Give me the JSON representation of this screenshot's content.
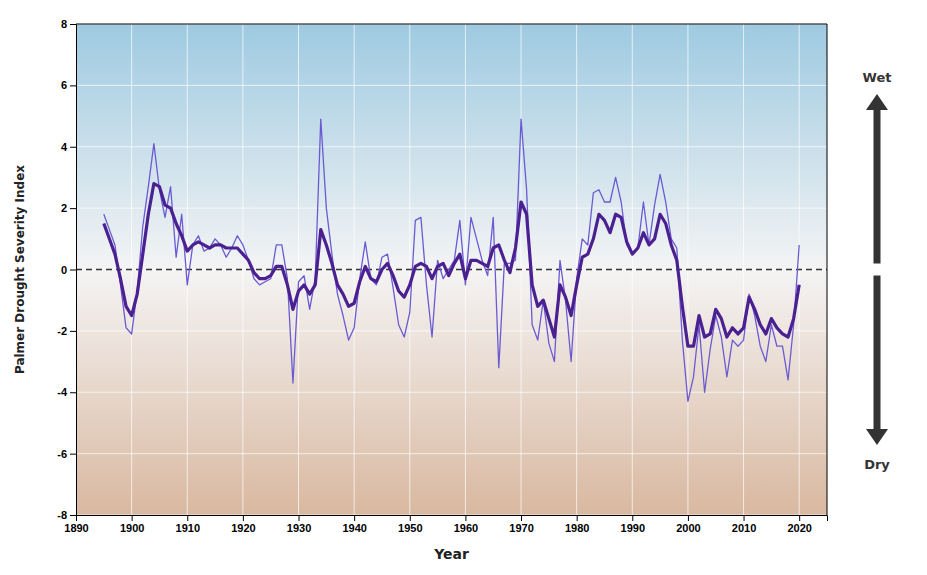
{
  "chart_data": {
    "type": "line",
    "xlabel": "Year",
    "ylabel": "Palmer Drought Severity Index",
    "annotations": [
      "Wet",
      "Dry"
    ],
    "x": [
      1895,
      1896,
      1897,
      1898,
      1899,
      1900,
      1901,
      1902,
      1903,
      1904,
      1905,
      1906,
      1907,
      1908,
      1909,
      1910,
      1911,
      1912,
      1913,
      1914,
      1915,
      1916,
      1917,
      1918,
      1919,
      1920,
      1921,
      1922,
      1923,
      1924,
      1925,
      1926,
      1927,
      1928,
      1929,
      1930,
      1931,
      1932,
      1933,
      1934,
      1935,
      1936,
      1937,
      1938,
      1939,
      1940,
      1941,
      1942,
      1943,
      1944,
      1945,
      1946,
      1947,
      1948,
      1949,
      1950,
      1951,
      1952,
      1953,
      1954,
      1955,
      1956,
      1957,
      1958,
      1959,
      1960,
      1961,
      1962,
      1963,
      1964,
      1965,
      1966,
      1967,
      1968,
      1969,
      1970,
      1971,
      1972,
      1973,
      1974,
      1975,
      1976,
      1977,
      1978,
      1979,
      1980,
      1981,
      1982,
      1983,
      1984,
      1985,
      1986,
      1987,
      1988,
      1989,
      1990,
      1991,
      1992,
      1993,
      1994,
      1995,
      1996,
      1997,
      1998,
      1999,
      2000,
      2001,
      2002,
      2003,
      2004,
      2005,
      2006,
      2007,
      2008,
      2009,
      2010,
      2011,
      2012,
      2013,
      2014,
      2015,
      2016,
      2017,
      2018,
      2019,
      2020
    ],
    "series": [
      {
        "color": "#6B5BD2",
        "values": [
          1.8,
          1.3,
          0.8,
          -0.5,
          -1.9,
          -2.1,
          -0.7,
          1.4,
          2.7,
          4.1,
          2.6,
          1.7,
          2.7,
          0.4,
          1.8,
          -0.5,
          0.8,
          1.1,
          0.6,
          0.7,
          1.0,
          0.8,
          0.4,
          0.7,
          1.1,
          0.8,
          0.3,
          -0.3,
          -0.5,
          -0.4,
          -0.3,
          0.8,
          0.8,
          -0.3,
          -3.7,
          -0.4,
          -0.2,
          -1.3,
          -0.3,
          4.9,
          2.0,
          0.5,
          -0.8,
          -1.5,
          -2.3,
          -1.9,
          -0.3,
          0.9,
          -0.3,
          -0.5,
          0.4,
          0.5,
          -0.6,
          -1.8,
          -2.2,
          -1.4,
          1.6,
          1.7,
          -0.5,
          -2.2,
          0.3,
          -0.3,
          0.0,
          0.3,
          1.6,
          -0.5,
          1.7,
          1.0,
          0.3,
          -0.2,
          1.7,
          -3.2,
          0.2,
          0.2,
          0.3,
          4.9,
          2.6,
          -1.8,
          -2.3,
          -1.0,
          -2.4,
          -3.0,
          0.3,
          -1.0,
          -3.0,
          -0.3,
          1.0,
          0.8,
          2.5,
          2.6,
          2.2,
          2.2,
          3.0,
          2.2,
          0.8,
          0.5,
          0.7,
          2.2,
          0.8,
          2.1,
          3.1,
          2.2,
          1.0,
          0.7,
          -2.3,
          -4.3,
          -3.5,
          -1.8,
          -4.0,
          -2.6,
          -1.5,
          -2.2,
          -3.5,
          -2.3,
          -2.5,
          -2.3,
          -0.8,
          -1.5,
          -2.5,
          -3.0,
          -1.8,
          -2.5,
          -2.5,
          -3.6,
          -1.8,
          0.8
        ]
      },
      {
        "color": "#4B2090",
        "values": [
          1.5,
          1.0,
          0.5,
          -0.3,
          -1.2,
          -1.5,
          -0.8,
          0.5,
          1.8,
          2.8,
          2.7,
          2.1,
          2.0,
          1.5,
          1.1,
          0.6,
          0.8,
          0.9,
          0.8,
          0.7,
          0.8,
          0.8,
          0.7,
          0.7,
          0.7,
          0.5,
          0.3,
          -0.1,
          -0.3,
          -0.3,
          -0.2,
          0.1,
          0.1,
          -0.5,
          -1.3,
          -0.7,
          -0.5,
          -0.8,
          -0.5,
          1.3,
          0.8,
          0.2,
          -0.5,
          -0.8,
          -1.2,
          -1.1,
          -0.4,
          0.1,
          -0.3,
          -0.4,
          0.0,
          0.2,
          -0.2,
          -0.7,
          -0.9,
          -0.5,
          0.1,
          0.2,
          0.1,
          -0.3,
          0.1,
          0.2,
          -0.2,
          0.2,
          0.5,
          -0.3,
          0.3,
          0.3,
          0.2,
          0.1,
          0.7,
          0.8,
          0.3,
          -0.1,
          0.7,
          2.2,
          1.8,
          -0.5,
          -1.2,
          -1.0,
          -1.6,
          -2.2,
          -0.5,
          -0.9,
          -1.5,
          -0.5,
          0.4,
          0.5,
          1.0,
          1.8,
          1.6,
          1.2,
          1.8,
          1.7,
          0.9,
          0.5,
          0.7,
          1.2,
          0.8,
          1.0,
          1.8,
          1.5,
          0.8,
          0.3,
          -1.2,
          -2.5,
          -2.5,
          -1.5,
          -2.2,
          -2.1,
          -1.3,
          -1.6,
          -2.2,
          -1.9,
          -2.1,
          -1.9,
          -0.9,
          -1.3,
          -1.8,
          -2.1,
          -1.6,
          -1.9,
          -2.1,
          -2.2,
          -1.6,
          -0.5
        ]
      }
    ],
    "xlim": [
      1890,
      2025
    ],
    "ylim": [
      -8,
      8
    ],
    "xticks": [
      1890,
      1900,
      1910,
      1920,
      1930,
      1940,
      1950,
      1960,
      1970,
      1980,
      1990,
      2000,
      2010,
      2020
    ],
    "yticks": [
      -8,
      -6,
      -4,
      -2,
      0,
      2,
      4,
      6,
      8
    ],
    "grid": true
  }
}
